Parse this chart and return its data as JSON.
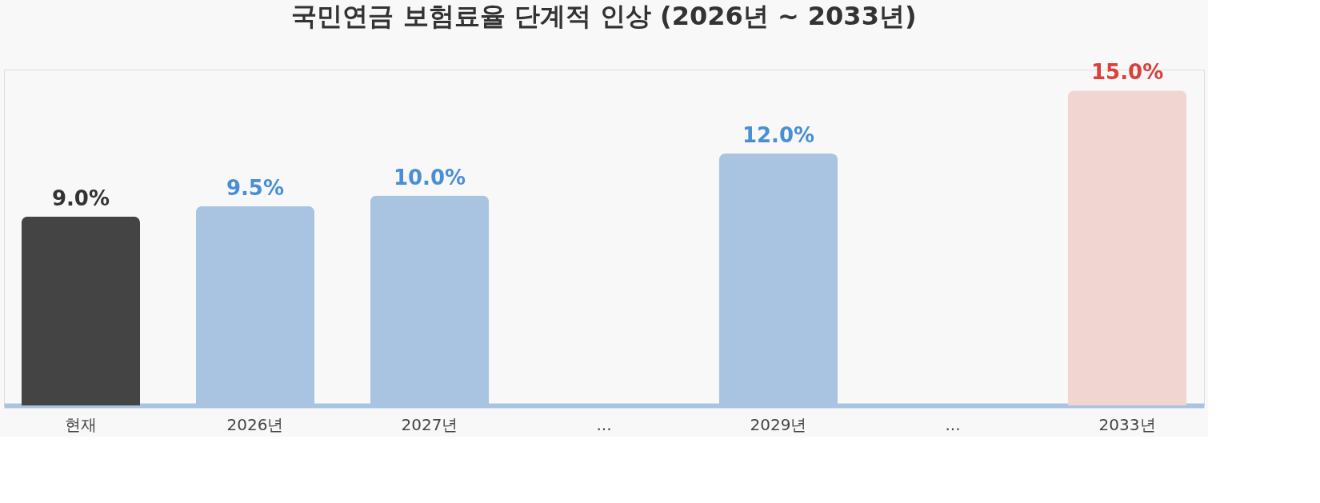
{
  "chart_data": {
    "type": "bar",
    "title": "국민연금 보험료율 단계적 인상 (2026년 ~ 2033년)",
    "categories": [
      "현재",
      "2026년",
      "2027년",
      "...",
      "2029년",
      "...",
      "2033년"
    ],
    "values": [
      9.0,
      9.5,
      10.0,
      null,
      12.0,
      null,
      15.0
    ],
    "value_labels": [
      "9.0%",
      "9.5%",
      "10.0%",
      null,
      "12.0%",
      null,
      "15.0%"
    ],
    "colors": [
      "#444444",
      "#a9c4e0",
      "#a9c4e0",
      "#a9c4e0",
      "#a9c4e0",
      "#a9c4e0",
      "#f0d5d0"
    ],
    "grid": false
  }
}
